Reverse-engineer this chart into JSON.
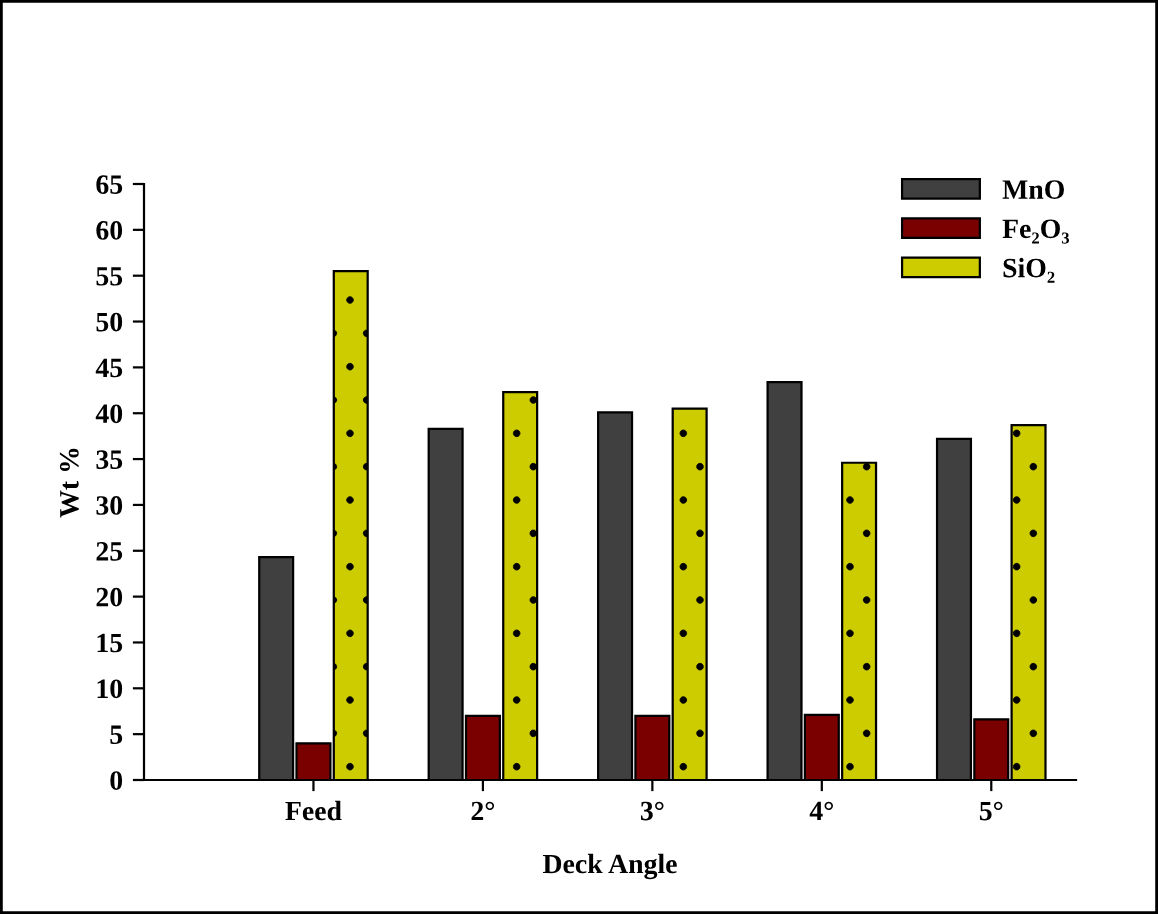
{
  "chart_data": {
    "type": "bar",
    "xlabel": "Deck Angle",
    "ylabel": "Wt %",
    "categories": [
      "Feed",
      "2°",
      "3°",
      "4°",
      "5°"
    ],
    "series": [
      {
        "name": "MnO",
        "color": "#404040",
        "values": [
          24.3,
          38.3,
          40.1,
          43.4,
          37.2
        ]
      },
      {
        "name": "Fe₂O₃",
        "color": "#7a0000",
        "values": [
          4,
          7,
          7,
          7.1,
          6.6
        ]
      },
      {
        "name": "SiO₂",
        "color": "#cccc00",
        "values": [
          55.5,
          42.3,
          40.5,
          34.6,
          38.7
        ]
      }
    ],
    "ylim": [
      0,
      65
    ],
    "yticks": [
      0,
      5,
      10,
      15,
      20,
      25,
      30,
      35,
      40,
      45,
      50,
      55,
      60,
      65
    ],
    "grid": false,
    "legend": "top right"
  }
}
